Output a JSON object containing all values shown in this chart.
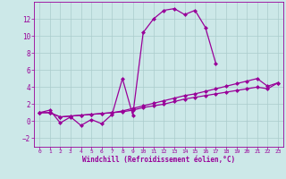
{
  "xlabel": "Windchill (Refroidissement éolien,°C)",
  "x": [
    0,
    1,
    2,
    3,
    4,
    5,
    6,
    7,
    8,
    9,
    10,
    11,
    12,
    13,
    14,
    15,
    16,
    17,
    18,
    19,
    20,
    21,
    22,
    23
  ],
  "line1": [
    1.0,
    1.3,
    -0.2,
    0.5,
    -0.5,
    0.2,
    -0.3,
    0.8,
    5.0,
    0.7,
    10.4,
    12.0,
    13.0,
    13.2,
    12.5,
    13.0,
    11.0,
    6.8,
    null,
    null,
    null,
    null,
    null,
    null
  ],
  "line2": [
    1.0,
    1.0,
    0.5,
    0.6,
    0.7,
    0.8,
    0.9,
    1.0,
    1.2,
    1.5,
    1.8,
    2.1,
    2.4,
    2.7,
    3.0,
    3.2,
    3.5,
    3.8,
    4.1,
    4.4,
    4.7,
    5.0,
    4.1,
    4.5
  ],
  "line3": [
    1.0,
    1.0,
    0.5,
    0.6,
    0.7,
    0.8,
    0.9,
    1.0,
    1.1,
    1.3,
    1.6,
    1.8,
    2.0,
    2.3,
    2.6,
    2.8,
    3.0,
    3.2,
    3.4,
    3.6,
    3.8,
    4.0,
    3.8,
    4.5
  ],
  "ylim": [
    -3,
    14
  ],
  "xlim": [
    -0.5,
    23.5
  ],
  "yticks": [
    -2,
    0,
    2,
    4,
    6,
    8,
    10,
    12
  ],
  "xticks": [
    0,
    1,
    2,
    3,
    4,
    5,
    6,
    7,
    8,
    9,
    10,
    11,
    12,
    13,
    14,
    15,
    16,
    17,
    18,
    19,
    20,
    21,
    22,
    23
  ],
  "line_color": "#990099",
  "bg_color": "#cce8e8",
  "grid_color": "#aacccc",
  "markersize": 2.5,
  "linewidth": 0.9
}
